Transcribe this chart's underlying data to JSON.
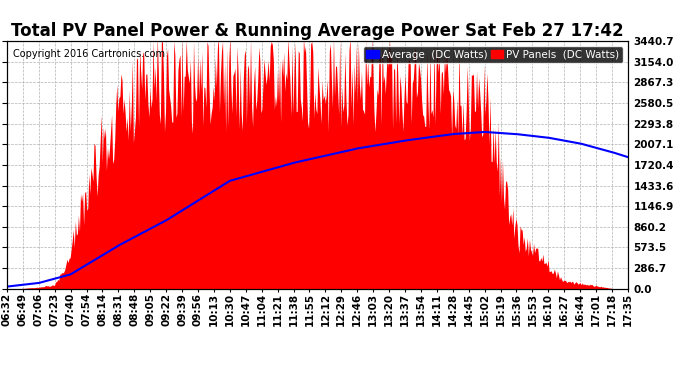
{
  "title": "Total PV Panel Power & Running Average Power Sat Feb 27 17:42",
  "copyright": "Copyright 2016 Cartronics.com",
  "legend_labels": [
    "Average  (DC Watts)",
    "PV Panels  (DC Watts)"
  ],
  "ylabel_right": [
    "0.0",
    "286.7",
    "573.5",
    "860.2",
    "1146.9",
    "1433.6",
    "1720.4",
    "2007.1",
    "2293.8",
    "2580.5",
    "2867.3",
    "3154.0",
    "3440.7"
  ],
  "ytick_values": [
    0.0,
    286.7,
    573.5,
    860.2,
    1146.9,
    1433.6,
    1720.4,
    2007.1,
    2293.8,
    2580.5,
    2867.3,
    3154.0,
    3440.7
  ],
  "ymax": 3440.7,
  "background_color": "#ffffff",
  "grid_color": "#aaaaaa",
  "bar_color": "red",
  "line_color": "blue",
  "title_fontsize": 12,
  "tick_fontsize": 7.5,
  "xtick_labels": [
    "06:32",
    "06:49",
    "07:06",
    "07:23",
    "07:40",
    "07:54",
    "08:14",
    "08:31",
    "08:48",
    "09:05",
    "09:22",
    "09:39",
    "09:56",
    "10:13",
    "10:30",
    "10:47",
    "11:04",
    "11:21",
    "11:38",
    "11:55",
    "12:12",
    "12:29",
    "12:46",
    "13:03",
    "13:20",
    "13:37",
    "13:54",
    "14:11",
    "14:28",
    "14:45",
    "15:02",
    "15:19",
    "15:36",
    "15:53",
    "16:10",
    "16:27",
    "16:44",
    "17:01",
    "17:18",
    "17:35"
  ]
}
